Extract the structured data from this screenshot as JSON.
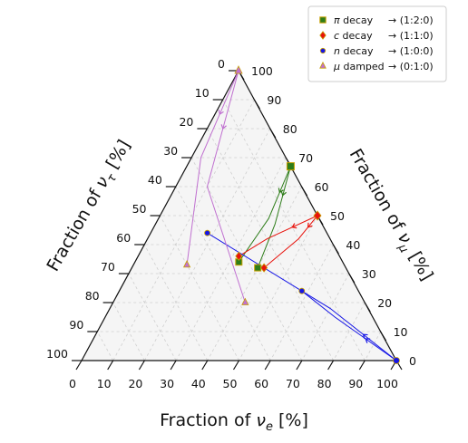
{
  "chart_data": {
    "type": "scatter",
    "subtype": "ternary",
    "grid": true,
    "legend_position": "top-right",
    "axes": {
      "bottom": {
        "label": "Fraction of ν_e [%]",
        "label_main": "Fraction of ",
        "label_sym": "ν",
        "label_sub": "e",
        "label_tail": " [%]",
        "ticks": [
          "0",
          "10",
          "20",
          "30",
          "40",
          "50",
          "60",
          "70",
          "80",
          "90",
          "100"
        ]
      },
      "left": {
        "label": "Fraction of ν_τ [%]",
        "label_main": "Fraction of ",
        "label_sym": "ν",
        "label_sub": "τ",
        "label_tail": " [%]",
        "ticks": [
          "0",
          "10",
          "20",
          "30",
          "40",
          "50",
          "60",
          "70",
          "80",
          "90",
          "100"
        ]
      },
      "right": {
        "label": "Fraction of ν_μ [%]",
        "label_main": "Fraction of ",
        "label_sym": "ν",
        "label_sub": "μ",
        "label_tail": " [%]",
        "ticks": [
          "0",
          "10",
          "20",
          "30",
          "40",
          "50",
          "60",
          "70",
          "80",
          "90",
          "100"
        ]
      }
    },
    "units": "%",
    "series": [
      {
        "name": "π decay",
        "legend_sym": "π",
        "legend_rest": " decay",
        "ratio": "→ (1:2:0)",
        "color": "#2e7d1a",
        "marker": "square",
        "source_point": {
          "e": 33,
          "mu": 67,
          "tau": 0
        },
        "markers": [
          {
            "e": 33,
            "mu": 34,
            "tau": 33
          },
          {
            "e": 40,
            "mu": 32,
            "tau": 28
          }
        ],
        "paths": [
          [
            {
              "e": 33,
              "mu": 67,
              "tau": 0
            },
            {
              "e": 35,
              "mu": 49,
              "tau": 16
            },
            {
              "e": 33,
              "mu": 34,
              "tau": 33
            }
          ],
          [
            {
              "e": 33,
              "mu": 67,
              "tau": 0
            },
            {
              "e": 38,
              "mu": 47,
              "tau": 15
            },
            {
              "e": 40,
              "mu": 32,
              "tau": 28
            }
          ]
        ]
      },
      {
        "name": "c decay",
        "legend_sym": "c",
        "legend_rest": " decay",
        "ratio": "→ (1:1:0)",
        "color": "#e8120c",
        "marker": "diamond",
        "source_point": {
          "e": 50,
          "mu": 50,
          "tau": 0
        },
        "markers": [
          {
            "e": 32,
            "mu": 36,
            "tau": 32
          },
          {
            "e": 42,
            "mu": 32,
            "tau": 26
          }
        ],
        "paths": [
          [
            {
              "e": 50,
              "mu": 50,
              "tau": 0
            },
            {
              "e": 38,
              "mu": 42,
              "tau": 20
            },
            {
              "e": 32,
              "mu": 36,
              "tau": 32
            }
          ],
          [
            {
              "e": 50,
              "mu": 50,
              "tau": 0
            },
            {
              "e": 48,
              "mu": 42,
              "tau": 10
            },
            {
              "e": 42,
              "mu": 32,
              "tau": 26
            }
          ]
        ]
      },
      {
        "name": "n decay",
        "legend_sym": "n",
        "legend_rest": " decay",
        "ratio": "→ (1:0:0)",
        "color": "#1515e6",
        "marker": "circle",
        "source_point": {
          "e": 100,
          "mu": 0,
          "tau": 0
        },
        "markers": [
          {
            "e": 18,
            "mu": 44,
            "tau": 38
          },
          {
            "e": 58,
            "mu": 24,
            "tau": 18
          }
        ],
        "paths": [
          [
            {
              "e": 100,
              "mu": 0,
              "tau": 0
            },
            {
              "e": 70,
              "mu": 18,
              "tau": 12
            },
            {
              "e": 18,
              "mu": 44,
              "tau": 38
            }
          ],
          [
            {
              "e": 100,
              "mu": 0,
              "tau": 0
            },
            {
              "e": 73,
              "mu": 15,
              "tau": 12
            },
            {
              "e": 58,
              "mu": 24,
              "tau": 18
            }
          ]
        ]
      },
      {
        "name": "μ damped",
        "legend_sym": "μ",
        "legend_rest": " damped",
        "ratio": "→ (0:1:0)",
        "color": "#c070d0",
        "marker": "triangle",
        "source_point": {
          "e": 0,
          "mu": 100,
          "tau": 0
        },
        "markers": [
          {
            "e": 17,
            "mu": 33,
            "tau": 50
          },
          {
            "e": 42,
            "mu": 20,
            "tau": 38
          }
        ],
        "paths": [
          [
            {
              "e": 0,
              "mu": 100,
              "tau": 0
            },
            {
              "e": 3,
              "mu": 70,
              "tau": 27
            },
            {
              "e": 17,
              "mu": 33,
              "tau": 50
            }
          ],
          [
            {
              "e": 0,
              "mu": 100,
              "tau": 0
            },
            {
              "e": 10,
              "mu": 60,
              "tau": 30
            },
            {
              "e": 42,
              "mu": 20,
              "tau": 38
            }
          ]
        ]
      }
    ]
  }
}
